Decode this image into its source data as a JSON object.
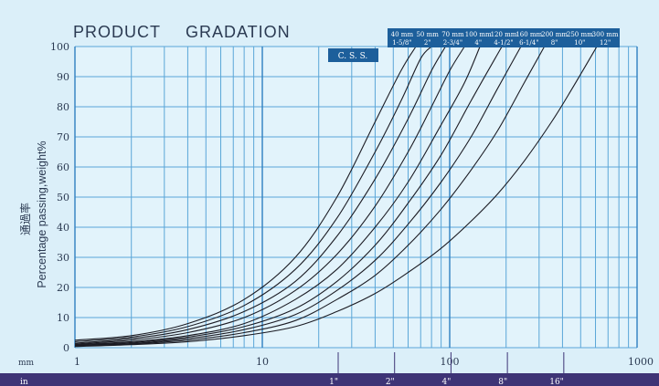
{
  "chart_data": {
    "type": "line",
    "title": "PRODUCT",
    "subtitle": "GRADATION",
    "ylabel": "Percentage passing,weight%",
    "ylabel_cn": "通過率",
    "x_scale": "log",
    "x_unit_label": "mm",
    "x_tick_labels": [
      "1",
      "10",
      "100",
      "1000"
    ],
    "x_ticks": [
      1,
      10,
      100,
      1000
    ],
    "xlim": [
      1,
      1000
    ],
    "ylim": [
      0,
      100
    ],
    "y_ticks": [
      0,
      10,
      20,
      30,
      40,
      50,
      60,
      70,
      80,
      90,
      100
    ],
    "grid": true,
    "inch_axis": {
      "unit_label": "in",
      "ticks": [
        {
          "label": "1\"",
          "mm": 25.4
        },
        {
          "label": "2\"",
          "mm": 50.8
        },
        {
          "label": "4\"",
          "mm": 101.6
        },
        {
          "label": "8\"",
          "mm": 203.2
        },
        {
          "label": "16\"",
          "mm": 406.4
        }
      ]
    },
    "css_label": "C. S. S.",
    "header_sizes": [
      {
        "mm": "40 mm",
        "in": "1-5/8\""
      },
      {
        "mm": "50 mm",
        "in": "2\""
      },
      {
        "mm": "70 mm",
        "in": "2-3/4\""
      },
      {
        "mm": "100 mm",
        "in": "4\""
      },
      {
        "mm": "120 mm",
        "in": "4-1/2\""
      },
      {
        "mm": "160 mm",
        "in": "6-1/4\""
      },
      {
        "mm": "200 mm",
        "in": "8\""
      },
      {
        "mm": "250 mm",
        "in": "10\""
      },
      {
        "mm": "300 mm",
        "in": "12\""
      }
    ],
    "series": [
      {
        "x": [
          1,
          2,
          4,
          8,
          15,
          25,
          40,
          55,
          66
        ],
        "y": [
          2.5,
          4,
          8,
          16,
          30,
          50,
          75,
          92,
          100
        ]
      },
      {
        "x": [
          1,
          2,
          4,
          8,
          15,
          25,
          40,
          55,
          70,
          80
        ],
        "y": [
          2,
          3.5,
          7,
          14,
          26,
          43,
          65,
          82,
          96,
          100
        ]
      },
      {
        "x": [
          1,
          2,
          4,
          8,
          15,
          25,
          40,
          60,
          80,
          95
        ],
        "y": [
          1.5,
          3,
          6,
          12,
          22,
          37,
          56,
          76,
          92,
          100
        ]
      },
      {
        "x": [
          1,
          2,
          4,
          8,
          15,
          25,
          40,
          60,
          80,
          100,
          120
        ],
        "y": [
          1.2,
          2.5,
          5,
          10,
          19,
          31,
          47,
          65,
          80,
          92,
          100
        ]
      },
      {
        "x": [
          1,
          2,
          4,
          8,
          15,
          25,
          40,
          60,
          90,
          120,
          145
        ],
        "y": [
          1,
          2,
          4,
          8,
          16,
          26,
          40,
          55,
          74,
          88,
          100
        ]
      },
      {
        "x": [
          1,
          2,
          4,
          8,
          15,
          25,
          40,
          60,
          90,
          130,
          190
        ],
        "y": [
          0.8,
          1.7,
          3.5,
          7,
          13,
          22,
          34,
          48,
          64,
          82,
          100
        ]
      },
      {
        "x": [
          1,
          2,
          4,
          8,
          15,
          25,
          40,
          60,
          90,
          130,
          180,
          240
        ],
        "y": [
          0.6,
          1.4,
          3,
          6,
          11,
          19,
          29,
          41,
          55,
          70,
          86,
          100
        ]
      },
      {
        "x": [
          1,
          2,
          4,
          8,
          15,
          25,
          40,
          60,
          90,
          130,
          180,
          250,
          320
        ],
        "y": [
          0.5,
          1.2,
          2.5,
          5,
          9,
          16,
          24,
          34,
          46,
          59,
          72,
          88,
          100
        ]
      },
      {
        "x": [
          1,
          2,
          4,
          8,
          15,
          25,
          40,
          60,
          90,
          130,
          180,
          250,
          350,
          450,
          610
        ],
        "y": [
          0.4,
          1,
          2,
          4,
          7,
          12,
          18,
          25,
          33,
          42,
          51,
          62,
          75,
          86,
          100
        ]
      }
    ]
  }
}
